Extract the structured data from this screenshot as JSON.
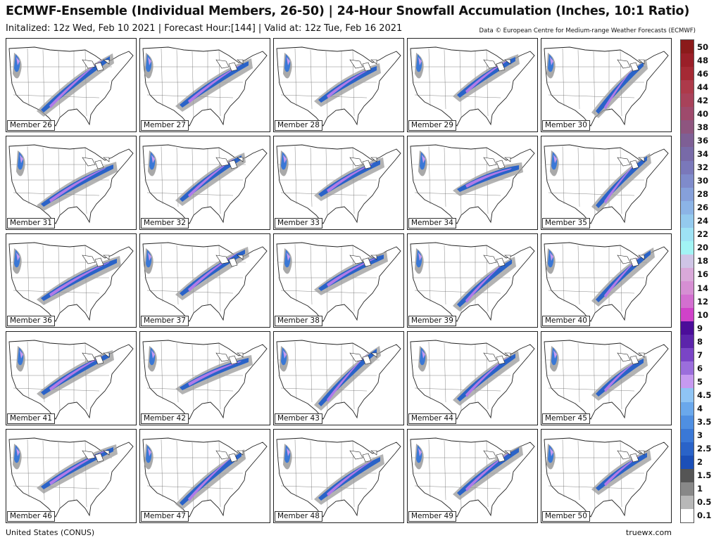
{
  "header": {
    "title": "ECMWF-Ensemble (Individual Members, 26-50) | 24-Hour Snowfall Accumulation (Inches, 10:1 Ratio)",
    "subtitle": "Initalized: 12z Wed, Feb 10 2021 | Forecast Hour:[144] | Valid at: 12z Tue, Feb 16 2021",
    "credit": "Data © European Centre for Medium-range Weather Forecasts (ECMWF)"
  },
  "members": [
    {
      "label": "Member 26"
    },
    {
      "label": "Member 27"
    },
    {
      "label": "Member 28"
    },
    {
      "label": "Member 29"
    },
    {
      "label": "Member 30"
    },
    {
      "label": "Member 31"
    },
    {
      "label": "Member 32"
    },
    {
      "label": "Member 33"
    },
    {
      "label": "Member 34"
    },
    {
      "label": "Member 35"
    },
    {
      "label": "Member 36"
    },
    {
      "label": "Member 37"
    },
    {
      "label": "Member 38"
    },
    {
      "label": "Member 39"
    },
    {
      "label": "Member 40"
    },
    {
      "label": "Member 41"
    },
    {
      "label": "Member 42"
    },
    {
      "label": "Member 43"
    },
    {
      "label": "Member 44"
    },
    {
      "label": "Member 45"
    },
    {
      "label": "Member 46"
    },
    {
      "label": "Member 47"
    },
    {
      "label": "Member 48"
    },
    {
      "label": "Member 49"
    },
    {
      "label": "Member 50"
    }
  ],
  "color_scale": [
    {
      "label": "50",
      "color": "#8b1a1a"
    },
    {
      "label": "48",
      "color": "#9a1f28"
    },
    {
      "label": "46",
      "color": "#a52a34"
    },
    {
      "label": "44",
      "color": "#ad3a4a"
    },
    {
      "label": "42",
      "color": "#a8425a"
    },
    {
      "label": "40",
      "color": "#9e4a6c"
    },
    {
      "label": "38",
      "color": "#8e557f"
    },
    {
      "label": "36",
      "color": "#7e5f95"
    },
    {
      "label": "34",
      "color": "#786aa8"
    },
    {
      "label": "32",
      "color": "#7a78ba"
    },
    {
      "label": "30",
      "color": "#7f8bcb"
    },
    {
      "label": "28",
      "color": "#86a0da"
    },
    {
      "label": "26",
      "color": "#8cb4e6"
    },
    {
      "label": "24",
      "color": "#94caee"
    },
    {
      "label": "22",
      "color": "#9ee2f4"
    },
    {
      "label": "20",
      "color": "#a2f4f4"
    },
    {
      "label": "18",
      "color": "#cfc5e6"
    },
    {
      "label": "16",
      "color": "#d9a9d9"
    },
    {
      "label": "14",
      "color": "#d68fd3"
    },
    {
      "label": "12",
      "color": "#d36fd0"
    },
    {
      "label": "10",
      "color": "#d042c9"
    },
    {
      "label": "9",
      "color": "#4b0d99"
    },
    {
      "label": "8",
      "color": "#5c24ab"
    },
    {
      "label": "7",
      "color": "#7a45c6"
    },
    {
      "label": "6",
      "color": "#9b6edc"
    },
    {
      "label": "5",
      "color": "#c69af0"
    },
    {
      "label": "4.5",
      "color": "#8fc4f4"
    },
    {
      "label": "4",
      "color": "#6aa8ec"
    },
    {
      "label": "3.5",
      "color": "#4f8fe2"
    },
    {
      "label": "3",
      "color": "#3a78d6"
    },
    {
      "label": "2.5",
      "color": "#2a63c8"
    },
    {
      "label": "2",
      "color": "#1b4fb8"
    },
    {
      "label": "1.5",
      "color": "#555555"
    },
    {
      "label": "1",
      "color": "#888888"
    },
    {
      "label": "0.5",
      "color": "#b8b8b8"
    },
    {
      "label": "0.1",
      "color": "#ffffff"
    }
  ],
  "footer": {
    "region": "United States (CONUS)",
    "site": "truewx.com"
  }
}
